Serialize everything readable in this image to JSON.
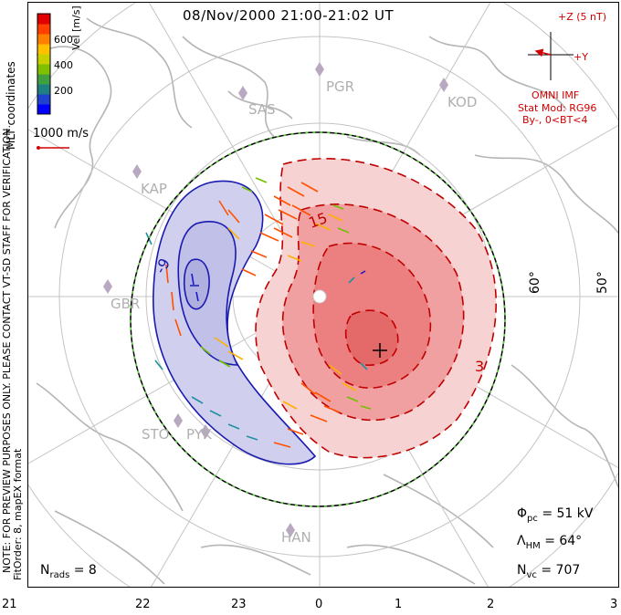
{
  "title": "08/Nov/2000 21:00-21:02 UT",
  "coords_label": "MLT coordinates",
  "colorbar": {
    "axis_label": "Vel [m/s]",
    "ticks": [
      "600",
      "400",
      "200"
    ],
    "colors": [
      "#0000ff",
      "#2040d0",
      "#208080",
      "#40a040",
      "#80c000",
      "#c8d000",
      "#ffc000",
      "#ff8000",
      "#ff4000",
      "#e00000"
    ]
  },
  "vector_scale_label": "1000 m/s",
  "imf": {
    "z_label": "+Z (5 nT)",
    "y_label": "+Y",
    "source": "OMNI IMF",
    "stat_mod": "Stat Mod: RG96",
    "condition": "By-, 0<BT<4"
  },
  "stations": [
    "PGR",
    "KOD",
    "SAS",
    "KAP",
    "GBR",
    "STO",
    "PYK",
    "HAN"
  ],
  "latitude_labels": [
    "60°",
    "50°"
  ],
  "contour_labels": [
    "-9",
    "15",
    "3"
  ],
  "notes": {
    "preview": "NOTE: FOR PREVIEW PURPOSES ONLY. PLEASE CONTACT VT-SD STAFF FOR VERIFICATION.",
    "fit": "FitOrder: 8, mapEX format"
  },
  "stats": {
    "phi_pc": "Φpc = 51 kV",
    "phi_sym": "Φ",
    "phi_sub": "pc",
    "phi_val": "= 51 kV",
    "lambda_sym": "Λ",
    "lambda_sub": "HM",
    "lambda_val": "= 64°",
    "n_sym": "N",
    "nvc_sub": "vc",
    "nvc_val": "= 707",
    "nrads_sub": "rads",
    "nrads_val": "= 8"
  },
  "x_axis_ticks": [
    "21",
    "22",
    "23",
    "0",
    "1",
    "2",
    "3"
  ],
  "theme": {
    "positive_fill": "#f08080",
    "negative_fill": "#c8c8ec",
    "positive_line": "#c00000",
    "negative_line": "#1a1ab0",
    "grid": "#c0c0c0"
  }
}
